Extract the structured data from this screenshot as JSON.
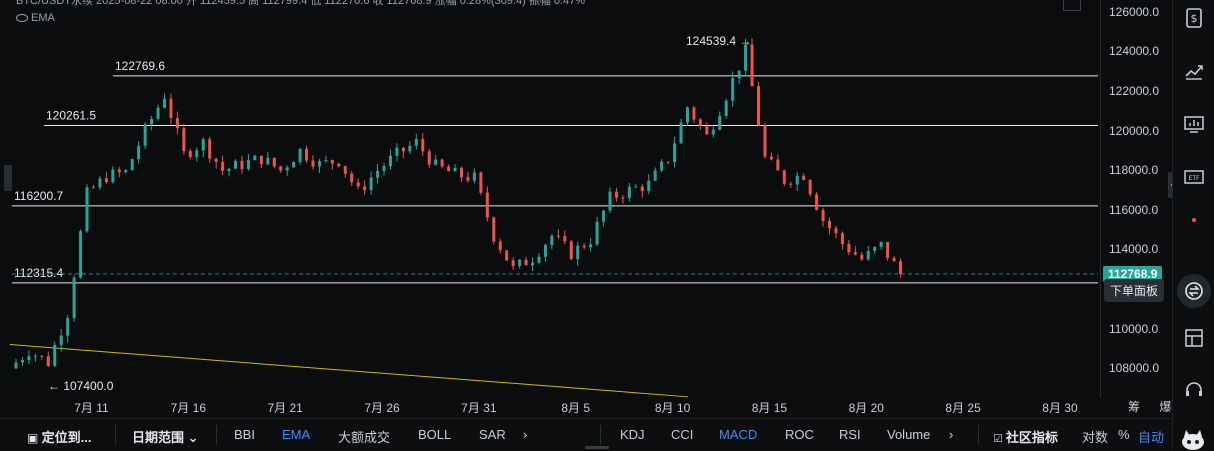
{
  "header": {
    "legend_line": "BTC/USDT永续 2025-08-22 08:00 开 112459.5 高 112799.4 低 112270.6 收 112768.9 涨幅 0.28%(309.4) 振幅 0.47%",
    "ema_label": "EMA"
  },
  "price_axis": {
    "ticks": [
      "126000.0",
      "124000.0",
      "122000.0",
      "120000.0",
      "118000.0",
      "116000.0",
      "114000.0",
      "112000.0",
      "110000.0",
      "108000.0"
    ],
    "last_price": "112768.9",
    "last_price_color": "#26a69a",
    "order_panel_tip": "下单面板"
  },
  "time_axis": {
    "ticks": [
      "7月 11",
      "7月 16",
      "7月 21",
      "7月 26",
      "7月 31",
      "8月 5",
      "8月 10",
      "8月 15",
      "8月 20",
      "8月 25",
      "8月 30"
    ],
    "corner": "筹 爆"
  },
  "chart_data": {
    "type": "candlestick",
    "interval": "8h",
    "x_axis": "date",
    "ylim": [
      106500,
      126600
    ],
    "up_color": "#26a69a",
    "down_color": "#ef5350",
    "horizontal_lines": [
      {
        "label": "122769.6",
        "price": 122769.6
      },
      {
        "label": "120261.5",
        "price": 120261.5
      },
      {
        "label": "116200.7",
        "price": 116200.7
      },
      {
        "label": "112315.4",
        "price": 112315.4
      }
    ],
    "current_price_line": 112768.9,
    "annotations": [
      {
        "label": "124539.4 →",
        "price": 124539.4,
        "date": "8月 14"
      },
      {
        "label": "← 107400.0",
        "price": 107400.0,
        "date": "7月 8"
      }
    ],
    "trendline_color": "#d4b800",
    "price_path": [
      [
        "7月 7",
        108000
      ],
      [
        "7月 8",
        108900
      ],
      [
        "7月 9",
        108300
      ],
      [
        "7月 10",
        110800
      ],
      [
        "7月 11",
        116800
      ],
      [
        "7月 12",
        117700
      ],
      [
        "7月 13",
        117900
      ],
      [
        "7月 14",
        120000
      ],
      [
        "7月 15",
        121800
      ],
      [
        "7月 16",
        118800
      ],
      [
        "7月 17",
        119400
      ],
      [
        "7月 18",
        118000
      ],
      [
        "7月 19",
        118300
      ],
      [
        "7月 20",
        118600
      ],
      [
        "7月 21",
        118000
      ],
      [
        "7月 22",
        119000
      ],
      [
        "7月 23",
        118300
      ],
      [
        "7月 24",
        118500
      ],
      [
        "7月 25",
        116900
      ],
      [
        "7月 26",
        118000
      ],
      [
        "7月 27",
        118800
      ],
      [
        "7月 28",
        119400
      ],
      [
        "7月 29",
        118200
      ],
      [
        "7月 30",
        117800
      ],
      [
        "7月 31",
        117600
      ],
      [
        "8月 1",
        114700
      ],
      [
        "8月 2",
        113000
      ],
      [
        "8月 3",
        113600
      ],
      [
        "8月 4",
        114700
      ],
      [
        "8月 5",
        113800
      ],
      [
        "8月 6",
        114500
      ],
      [
        "8月 7",
        116600
      ],
      [
        "8月 8",
        117000
      ],
      [
        "8月 9",
        117300
      ],
      [
        "8月 10",
        118600
      ],
      [
        "8月 11",
        121200
      ],
      [
        "8月 12",
        119700
      ],
      [
        "8月 13",
        121800
      ],
      [
        "8月 14",
        124000
      ],
      [
        "8月 15",
        118600
      ],
      [
        "8月 16",
        117500
      ],
      [
        "8月 17",
        117800
      ],
      [
        "8月 18",
        115500
      ],
      [
        "8月 19",
        114300
      ],
      [
        "8月 20",
        113500
      ],
      [
        "8月 21",
        114200
      ],
      [
        "8月 22",
        112768.9
      ]
    ]
  },
  "toolbar": {
    "locate": "定位到...",
    "date_range": "日期范围",
    "main_indicators": [
      "BBI",
      "EMA",
      "大额成交",
      "BOLL",
      "SAR"
    ],
    "sub_indicators": [
      "KDJ",
      "CCI",
      "MACD",
      "ROC",
      "RSI",
      "Volume"
    ],
    "community": "社区指标",
    "log": "对数",
    "percent": "%",
    "auto": "自动"
  },
  "sidebar": {
    "icons": [
      "dollar-doc-icon",
      "trend-icon",
      "monitor-chart-icon",
      "etf-icon",
      "dot-icon",
      "order-panel-icon",
      "layout-icon",
      "headset-icon"
    ]
  }
}
